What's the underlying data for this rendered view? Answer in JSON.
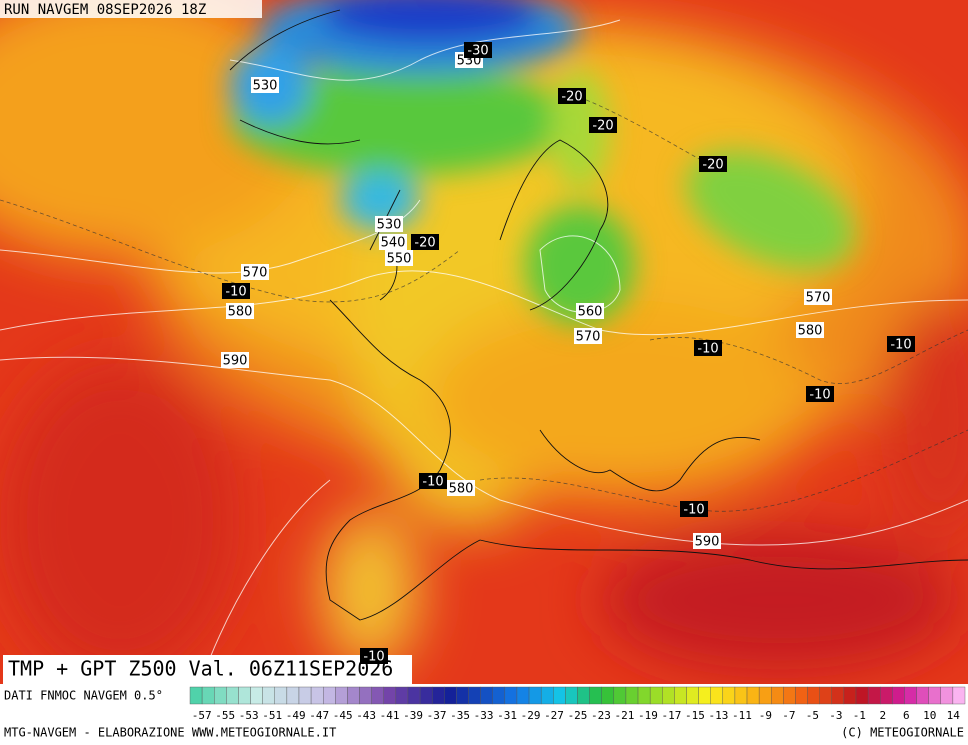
{
  "header": {
    "run": "RUN NAVGEM 08SEP2026 18Z"
  },
  "map": {
    "title": "TMP + GPT Z500 Val. 06Z11SEP2026",
    "gpt_labels": [
      "530",
      "530",
      "530",
      "540",
      "550",
      "570",
      "580",
      "590",
      "560",
      "570",
      "570",
      "580",
      "580",
      "590"
    ],
    "tmp_labels": [
      "-30",
      "-20",
      "-20",
      "-20",
      "-20",
      "-10",
      "-10",
      "-10",
      "-10",
      "-10",
      "-10",
      "-10"
    ]
  },
  "legend": {
    "source": "DATI FNMOC NAVGEM 0.5°",
    "labels": [
      "-57",
      "-55",
      "-53",
      "-51",
      "-49",
      "-47",
      "-45",
      "-43",
      "-41",
      "-39",
      "-37",
      "-35",
      "-33",
      "-31",
      "-29",
      "-27",
      "-25",
      "-23",
      "-21",
      "-19",
      "-17",
      "-15",
      "-13",
      "-11",
      "-9",
      "-7",
      "-5",
      "-3",
      "-1",
      "2",
      "6",
      "10",
      "14"
    ]
  },
  "footer": {
    "left": "MTG-NAVGEM - ELABORAZIONE WWW.METEOGIORNALE.IT",
    "right": "(C) METEOGIORNALE"
  }
}
